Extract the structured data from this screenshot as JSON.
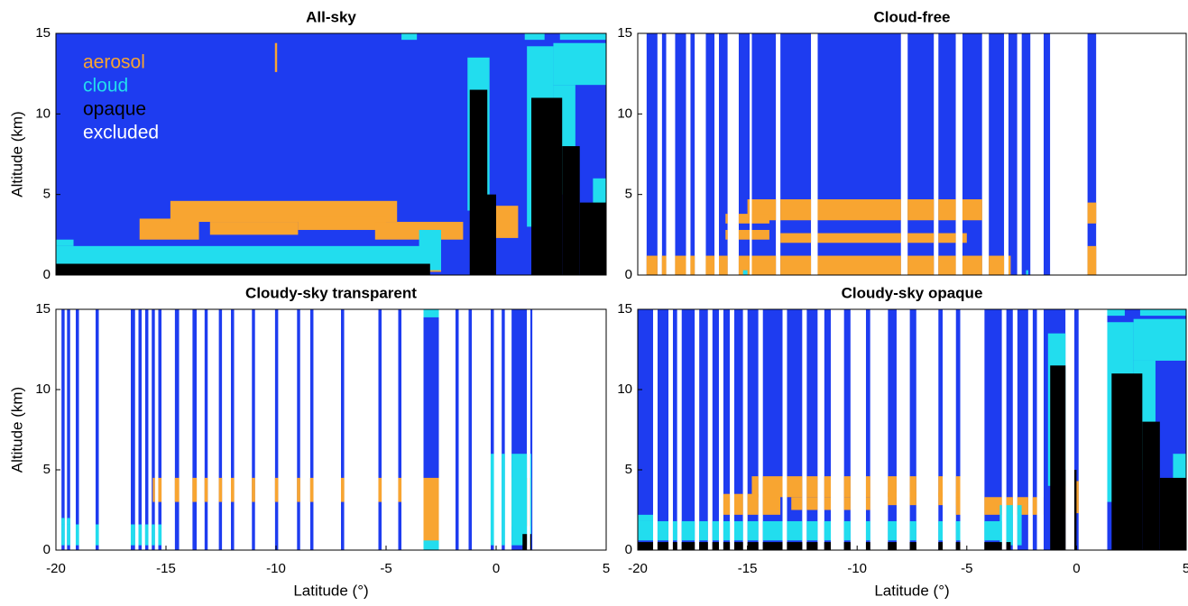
{
  "chart_data": [
    {
      "type": "curtain",
      "title": "All-sky",
      "ylabel": "Altitude (km)",
      "xlim": [
        -20,
        5
      ],
      "ylim": [
        0,
        15
      ],
      "yticks": [
        0,
        5,
        10,
        15
      ],
      "background_color": "#1e3cf0",
      "legend": "upper left",
      "included": [
        [
          -20,
          5
        ]
      ],
      "series": [
        {
          "name": "aerosol",
          "color": "#f8a531",
          "boxes": [
            [
              -19.7,
              -2.5,
              0.2,
              1.3
            ],
            [
              -16.2,
              -13.5,
              2.2,
              3.5
            ],
            [
              -14.8,
              -4.5,
              3.3,
              4.6
            ],
            [
              -13,
              -9,
              2.5,
              3.3
            ],
            [
              -9,
              -5,
              2.8,
              3.6
            ],
            [
              -5.5,
              -1.5,
              2.2,
              3.3
            ],
            [
              -0.8,
              1,
              2.3,
              4.3
            ],
            [
              -10.05,
              -9.95,
              12.6,
              14.4
            ]
          ]
        },
        {
          "name": "cloud",
          "color": "#22ddee",
          "boxes": [
            [
              -20,
              -3,
              0.6,
              1.8
            ],
            [
              -20,
              -19.2,
              1.8,
              2.2
            ],
            [
              -3.5,
              -2.5,
              0.3,
              2.8
            ],
            [
              -1.3,
              -0.3,
              4,
              13.5
            ],
            [
              1.4,
              2.6,
              3,
              14.2
            ],
            [
              2.6,
              5,
              11.8,
              14.4
            ],
            [
              2.6,
              3.6,
              5,
              11.8
            ],
            [
              4.4,
              5,
              4,
              6
            ],
            [
              -4.3,
              -3.6,
              14.6,
              15
            ],
            [
              1.3,
              2.2,
              14.6,
              15
            ],
            [
              2.9,
              5,
              14.6,
              15
            ]
          ]
        },
        {
          "name": "opaque",
          "color": "#000000",
          "boxes": [
            [
              -20,
              -3,
              0,
              0.7
            ],
            [
              -1.2,
              -0.4,
              0,
              11.5
            ],
            [
              -0.8,
              0,
              0,
              5
            ],
            [
              1.6,
              3,
              0,
              11
            ],
            [
              3,
              3.8,
              0,
              8
            ],
            [
              3.8,
              5,
              0,
              4.5
            ]
          ]
        },
        {
          "name": "excluded",
          "color": "#ffffff",
          "boxes": []
        }
      ]
    },
    {
      "type": "curtain",
      "title": "Cloud-free",
      "xlim": [
        -20,
        5
      ],
      "ylim": [
        0,
        15
      ],
      "yticks": [
        0,
        5,
        10,
        15
      ],
      "background_color": "#1e3cf0",
      "included": [
        [
          -19.6,
          -19.1
        ],
        [
          -18.9,
          -18.7
        ],
        [
          -18.3,
          -17.8
        ],
        [
          -17.6,
          -17.4
        ],
        [
          -16.9,
          -16.5
        ],
        [
          -16.3,
          -15.9
        ],
        [
          -15.4,
          -14.9
        ],
        [
          -14.8,
          -13.7
        ],
        [
          -13.5,
          -12.1
        ],
        [
          -11.8,
          -8
        ],
        [
          -7.7,
          -6.5
        ],
        [
          -6.3,
          -5.5
        ],
        [
          -5.2,
          -4.3
        ],
        [
          -4,
          -3.3
        ],
        [
          -3.1,
          -2.7
        ],
        [
          -2.5,
          -2.1
        ],
        [
          -1.5,
          -1.2
        ],
        [
          0.5,
          0.9
        ]
      ],
      "series": [
        {
          "color": "#f8a531",
          "boxes": [
            [
              -20,
              -3,
              0,
              1.2
            ],
            [
              -15,
              -4.2,
              3.4,
              4.7
            ],
            [
              -13.5,
              -5,
              2,
              2.6
            ],
            [
              -16,
              -14,
              2.2,
              2.8
            ],
            [
              -16,
              -14,
              3.2,
              3.8
            ],
            [
              0.4,
              1,
              3.2,
              4.5
            ],
            [
              0.4,
              1,
              0,
              1.8
            ]
          ]
        },
        {
          "color": "#22ddee",
          "boxes": [
            [
              -15.2,
              -15,
              0,
              0.3
            ],
            [
              -2.3,
              -2.2,
              0,
              0.3
            ]
          ]
        }
      ]
    },
    {
      "type": "curtain",
      "title": "Cloudy-sky transparent",
      "ylabel": "Altitude (km)",
      "xlabel": "Latitude (°)",
      "xlim": [
        -20,
        5
      ],
      "ylim": [
        0,
        15
      ],
      "xticks": [
        -20,
        -15,
        -10,
        -5,
        0,
        5
      ],
      "yticks": [
        0,
        5,
        10,
        15
      ],
      "background_color": "#1e3cf0",
      "included": [
        [
          -19.75,
          -19.6
        ],
        [
          -19.5,
          -19.35
        ],
        [
          -19.1,
          -18.95
        ],
        [
          -18.2,
          -18.05
        ],
        [
          -16.6,
          -16.4
        ],
        [
          -16.25,
          -16.1
        ],
        [
          -15.95,
          -15.8
        ],
        [
          -15.65,
          -15.5
        ],
        [
          -15.35,
          -15.2
        ],
        [
          -14.6,
          -14.4
        ],
        [
          -13.8,
          -13.6
        ],
        [
          -13.25,
          -13.1
        ],
        [
          -12.6,
          -12.45
        ],
        [
          -12.05,
          -11.9
        ],
        [
          -11.1,
          -10.95
        ],
        [
          -10.05,
          -9.9
        ],
        [
          -9.05,
          -8.9
        ],
        [
          -8.45,
          -8.3
        ],
        [
          -7.05,
          -6.9
        ],
        [
          -5.35,
          -5.2
        ],
        [
          -4.45,
          -4.3
        ],
        [
          -3.3,
          -2.6
        ],
        [
          -1.85,
          -1.7
        ],
        [
          -1.25,
          -1.1
        ],
        [
          -0.25,
          -0.1
        ],
        [
          0.25,
          0.4
        ],
        [
          0.7,
          1.4
        ],
        [
          1.55,
          1.65
        ]
      ],
      "series": [
        {
          "color": "#f8a531",
          "boxes": [
            [
              -15.6,
              -4,
              3,
              4.5
            ],
            [
              -3.3,
              -2.6,
              0,
              4.5
            ],
            [
              0.6,
              1.6,
              1.5,
              4.5
            ]
          ]
        },
        {
          "color": "#22ddee",
          "boxes": [
            [
              -20,
              -15,
              0.3,
              1.6
            ],
            [
              -20,
              -19.3,
              1.6,
              2
            ],
            [
              -3.3,
              -2.6,
              0,
              0.6
            ],
            [
              -0.3,
              1.6,
              0.3,
              6
            ],
            [
              -3.3,
              -2.6,
              14.5,
              15
            ]
          ]
        },
        {
          "color": "#000000",
          "boxes": [
            [
              1.2,
              1.6,
              0,
              1
            ]
          ]
        }
      ]
    },
    {
      "type": "curtain",
      "title": "Cloudy-sky opaque",
      "xlabel": "Latitude (°)",
      "xlim": [
        -20,
        5
      ],
      "ylim": [
        0,
        15
      ],
      "xticks": [
        -20,
        -15,
        -10,
        -5,
        0,
        5
      ],
      "yticks": [
        0,
        5,
        10,
        15
      ],
      "background_color": "#1e3cf0",
      "included": [
        [
          -20,
          -19.3
        ],
        [
          -19.1,
          -18.6
        ],
        [
          -18.4,
          -18.2
        ],
        [
          -18,
          -17.4
        ],
        [
          -17.2,
          -16.8
        ],
        [
          -16.6,
          -16.3
        ],
        [
          -16.1,
          -15.8
        ],
        [
          -15.6,
          -15.2
        ],
        [
          -15,
          -14.5
        ],
        [
          -14.3,
          -13.4
        ],
        [
          -13.2,
          -12.5
        ],
        [
          -12.3,
          -11.8
        ],
        [
          -11.5,
          -11.2
        ],
        [
          -10.6,
          -10.3
        ],
        [
          -9.6,
          -9.4
        ],
        [
          -8.6,
          -8.2
        ],
        [
          -7.6,
          -7.3
        ],
        [
          -6.3,
          -6.1
        ],
        [
          -5.5,
          -5.3
        ],
        [
          -4.2,
          -3.4
        ],
        [
          -3.2,
          -2.9
        ],
        [
          -2.7,
          -2.2
        ],
        [
          -2,
          -1.8
        ],
        [
          -1.5,
          -0.5
        ],
        [
          -0.1,
          0.1
        ],
        [
          1.4,
          5
        ]
      ],
      "series": [
        {
          "color": "#f8a531",
          "boxes": [
            [
              -16.2,
              -13.5,
              2.2,
              3.5
            ],
            [
              -14.8,
              -4.5,
              3.3,
              4.6
            ],
            [
              -13,
              -9,
              2.5,
              3.3
            ],
            [
              -9,
              -5,
              2.8,
              3.6
            ],
            [
              -5.5,
              -1.5,
              2.2,
              3.3
            ],
            [
              -0.8,
              1,
              2.3,
              4.3
            ]
          ]
        },
        {
          "color": "#22ddee",
          "boxes": [
            [
              -20,
              -3,
              0.6,
              1.8
            ],
            [
              -20,
              -19.2,
              1.8,
              2.2
            ],
            [
              -3.5,
              -2.5,
              0.3,
              2.8
            ],
            [
              -1.3,
              -0.3,
              4,
              13.5
            ],
            [
              1.4,
              2.6,
              3,
              14.2
            ],
            [
              2.6,
              5,
              11.8,
              14.4
            ],
            [
              2.6,
              3.6,
              5,
              11.8
            ],
            [
              4.4,
              5,
              4,
              6
            ],
            [
              1.3,
              2.2,
              14.6,
              15
            ],
            [
              2.9,
              5,
              14.6,
              15
            ]
          ]
        },
        {
          "color": "#000000",
          "boxes": [
            [
              -20,
              -3,
              0,
              0.5
            ],
            [
              -1.2,
              -0.4,
              0,
              11.5
            ],
            [
              -0.8,
              0,
              0,
              5
            ],
            [
              1.6,
              3,
              0,
              11
            ],
            [
              3,
              3.8,
              0,
              8
            ],
            [
              3.8,
              5,
              0,
              4.5
            ]
          ]
        }
      ]
    }
  ]
}
